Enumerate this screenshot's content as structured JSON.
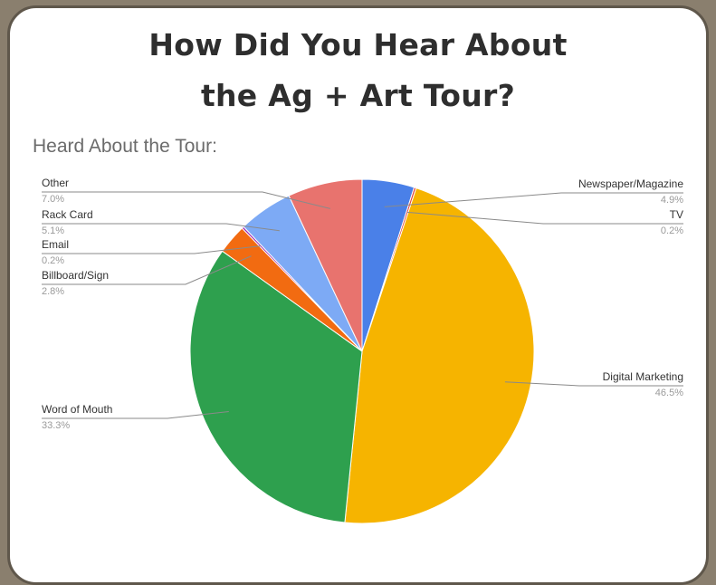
{
  "title_line1": "How Did You Hear About",
  "title_line2": "the Ag + Art Tour?",
  "chart_data": {
    "type": "pie",
    "subtitle": "Heard About the Tour:",
    "slices": [
      {
        "label": "Newspaper/Magazine",
        "value": 4.9,
        "display": "4.9%",
        "color": "#4a80e8"
      },
      {
        "label": "TV",
        "value": 0.2,
        "display": "0.2%",
        "color": "#e0413a"
      },
      {
        "label": "Digital Marketing",
        "value": 46.5,
        "display": "46.5%",
        "color": "#f6b400"
      },
      {
        "label": "Word of Mouth",
        "value": 33.3,
        "display": "33.3%",
        "color": "#2ea04e"
      },
      {
        "label": "Billboard/Sign",
        "value": 2.8,
        "display": "2.8%",
        "color": "#f26b11"
      },
      {
        "label": "Email",
        "value": 0.2,
        "display": "0.2%",
        "color": "#9c27b0"
      },
      {
        "label": "Rack Card",
        "value": 5.1,
        "display": "5.1%",
        "color": "#7daaf5"
      },
      {
        "label": "Other",
        "value": 7.0,
        "display": "7.0%",
        "color": "#e8736e"
      }
    ],
    "legend": "callout-labels"
  }
}
